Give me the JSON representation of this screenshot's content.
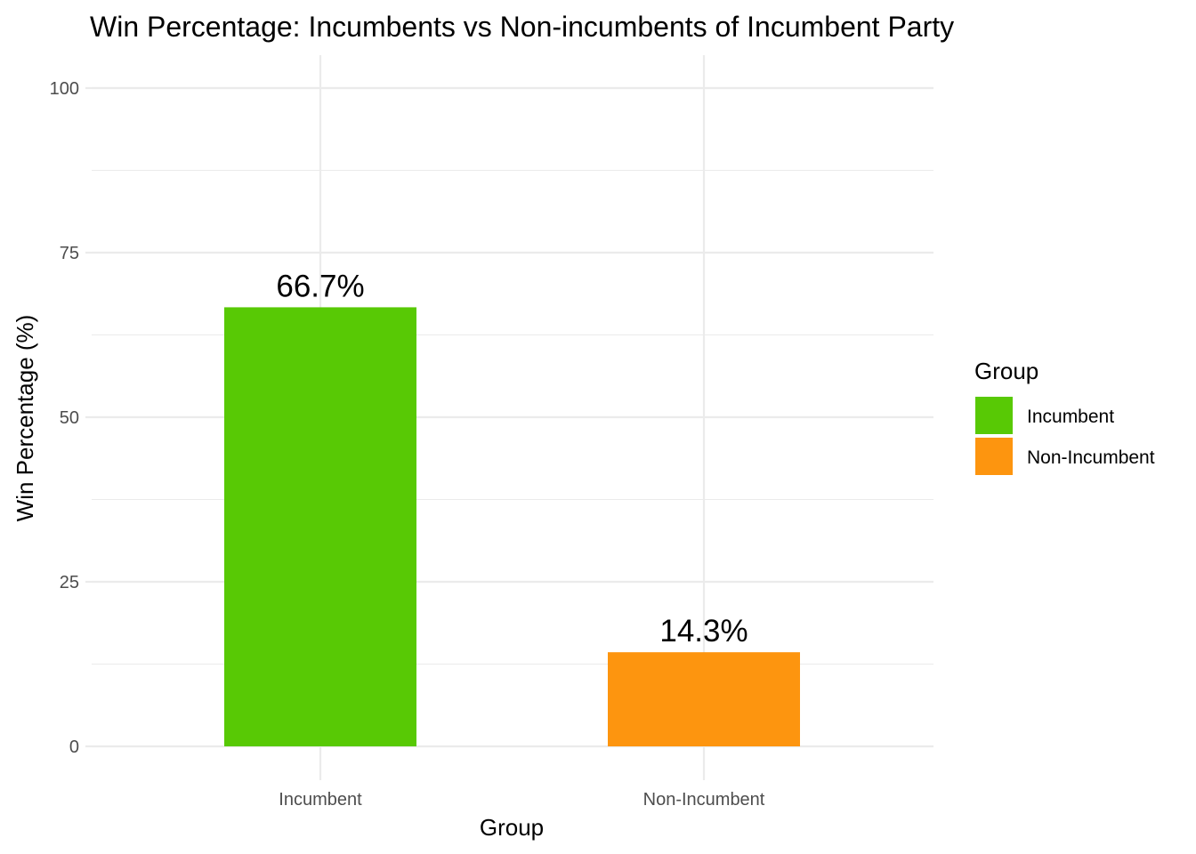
{
  "chart_data": {
    "type": "bar",
    "title": "Win Percentage: Incumbents vs Non-incumbents of Incumbent Party",
    "xlabel": "Group",
    "ylabel": "Win Percentage (%)",
    "categories": [
      "Incumbent",
      "Non-Incumbent"
    ],
    "values": [
      66.7,
      14.3
    ],
    "data_labels": [
      "66.7%",
      "14.3%"
    ],
    "colors": [
      "#58c905",
      "#fd950f"
    ],
    "ylim": [
      0,
      100
    ],
    "yticks": [
      0,
      25,
      50,
      75,
      100
    ],
    "ytick_labels": [
      "0",
      "25",
      "50",
      "75",
      "100"
    ],
    "grid": true,
    "legend": {
      "title": "Group",
      "placement": "right",
      "entries": [
        {
          "label": "Incumbent",
          "color": "#58c905"
        },
        {
          "label": "Non-Incumbent",
          "color": "#fd950f"
        }
      ]
    }
  }
}
